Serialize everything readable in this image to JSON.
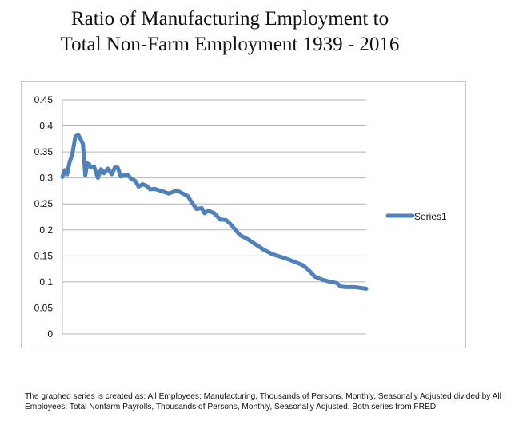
{
  "title_line1": "Ratio of Manufacturing Employment to",
  "title_line2": "Total Non-Farm Employment 1939 - 2016",
  "caption": "The graphed series is created as: All Employees: Manufacturing, Thousands of Persons, Monthly, Seasonally Adjusted divided by All Employees: Total Nonfarm Payrolls, Thousands of Persons, Monthly, Seasonally Adjusted. Both series from FRED.",
  "colors": {
    "series": "#4f81bd",
    "grid": "#b3b3b3",
    "border": "#c4c4c4",
    "text": "#111111"
  },
  "chart_data": {
    "type": "line",
    "title": "Ratio of Manufacturing Employment to Total Non-Farm Employment 1939 - 2016",
    "xlabel": "",
    "ylabel": "",
    "xlim": [
      1939,
      2016
    ],
    "ylim": [
      0,
      0.45
    ],
    "y_ticks": [
      "0",
      "0.05",
      "0.1",
      "0.15",
      "0.2",
      "0.25",
      "0.3",
      "0.35",
      "0.4",
      "0.45"
    ],
    "y_tick_values": [
      0,
      0.05,
      0.1,
      0.15,
      0.2,
      0.25,
      0.3,
      0.35,
      0.4,
      0.45
    ],
    "grid": true,
    "legend_position": "right",
    "series": [
      {
        "name": "Series1",
        "x": [
          1939,
          1939.6,
          1940.2,
          1940.8,
          1941.5,
          1942.3,
          1943.0,
          1943.6,
          1944.2,
          1944.8,
          1945.3,
          1945.8,
          1946.2,
          1947.0,
          1948.0,
          1948.8,
          1949.5,
          1950.5,
          1951.5,
          1952.3,
          1953.0,
          1953.8,
          1954.6,
          1955.5,
          1956.5,
          1957.5,
          1958.3,
          1959.3,
          1960.3,
          1961.2,
          1962.3,
          1964.0,
          1966.0,
          1968.0,
          1969.5,
          1970.8,
          1971.6,
          1973.0,
          1974.3,
          1975.0,
          1976.0,
          1977.5,
          1979.0,
          1980.5,
          1981.5,
          1982.5,
          1984.0,
          1986.0,
          1988.0,
          1990.0,
          1992.0,
          1994.0,
          1996.0,
          1998.0,
          2000.0,
          2001.5,
          2003.0,
          2005.0,
          2007.0,
          2008.5,
          2009.5,
          2011.0,
          2013.0,
          2015.0,
          2016.0
        ],
        "values": [
          0.302,
          0.315,
          0.307,
          0.33,
          0.345,
          0.38,
          0.383,
          0.375,
          0.365,
          0.305,
          0.328,
          0.326,
          0.32,
          0.322,
          0.3,
          0.317,
          0.309,
          0.318,
          0.307,
          0.32,
          0.32,
          0.303,
          0.305,
          0.306,
          0.298,
          0.294,
          0.283,
          0.288,
          0.285,
          0.278,
          0.279,
          0.275,
          0.27,
          0.276,
          0.27,
          0.265,
          0.255,
          0.24,
          0.242,
          0.232,
          0.237,
          0.232,
          0.22,
          0.219,
          0.212,
          0.203,
          0.19,
          0.182,
          0.172,
          0.162,
          0.154,
          0.149,
          0.144,
          0.138,
          0.132,
          0.122,
          0.11,
          0.104,
          0.1,
          0.098,
          0.091,
          0.09,
          0.09,
          0.088,
          0.087
        ]
      }
    ]
  }
}
